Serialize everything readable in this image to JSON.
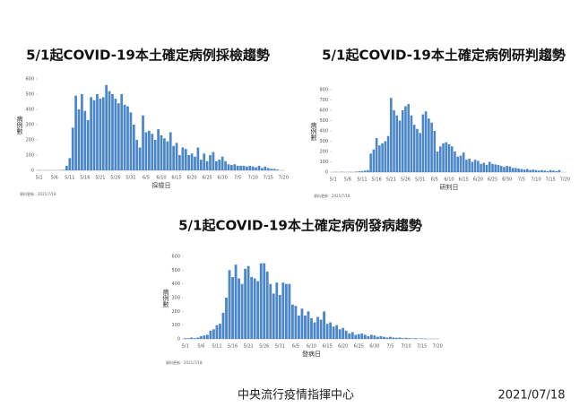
{
  "chart_data": [
    {
      "type": "bar",
      "title": "5/1起COVID-19本土確定病例採檢趨勢",
      "ylabel": "病例數",
      "xlabel": "採檢日",
      "source_note": "資料更新：2021/7/18",
      "color": "#4a86c8",
      "categories": [
        "5/1",
        null,
        null,
        null,
        null,
        "5/6",
        null,
        null,
        null,
        null,
        "5/11",
        null,
        null,
        null,
        null,
        "5/16",
        null,
        null,
        null,
        null,
        "5/21",
        null,
        null,
        null,
        null,
        "5/26",
        null,
        null,
        null,
        null,
        "5/31",
        null,
        null,
        null,
        null,
        "6/5",
        null,
        null,
        null,
        null,
        "6/10",
        null,
        null,
        null,
        null,
        "6/15",
        null,
        null,
        null,
        null,
        "6/20",
        null,
        null,
        null,
        null,
        "6/25",
        null,
        null,
        null,
        null,
        "6/30",
        null,
        null,
        null,
        null,
        "7/5",
        null,
        null,
        null,
        null,
        "7/10",
        null,
        null,
        null,
        null,
        "7/15",
        null,
        null,
        null,
        null,
        "7/20"
      ],
      "values": [
        1,
        0,
        1,
        0,
        1,
        1,
        0,
        2,
        3,
        30,
        80,
        280,
        490,
        400,
        500,
        390,
        330,
        480,
        460,
        500,
        470,
        480,
        560,
        520,
        500,
        470,
        440,
        500,
        430,
        420,
        380,
        300,
        200,
        150,
        360,
        250,
        260,
        240,
        200,
        270,
        230,
        210,
        190,
        250,
        160,
        180,
        100,
        150,
        140,
        100,
        110,
        90,
        150,
        70,
        110,
        60,
        100,
        120,
        60,
        70,
        90,
        60,
        40,
        35,
        40,
        30,
        30,
        30,
        25,
        30,
        25,
        20,
        30,
        15,
        25,
        15,
        10,
        10,
        5,
        null,
        null
      ],
      "ylim": [
        0,
        600
      ],
      "yticks": [
        0,
        100,
        200,
        300,
        400,
        500,
        600
      ]
    },
    {
      "type": "bar",
      "title": "5/1起COVID-19本土確定病例研判趨勢",
      "ylabel": "病例數",
      "xlabel": "研判日",
      "source_note": "資料更新：2021/7/18",
      "color": "#4a86c8",
      "categories": [
        "5/1",
        null,
        null,
        null,
        null,
        "5/6",
        null,
        null,
        null,
        null,
        "5/11",
        null,
        null,
        null,
        null,
        "5/16",
        null,
        null,
        null,
        null,
        "5/21",
        null,
        null,
        null,
        null,
        "5/26",
        null,
        null,
        null,
        null,
        "5/31",
        null,
        null,
        null,
        null,
        "6/5",
        null,
        null,
        null,
        null,
        "6/10",
        null,
        null,
        null,
        null,
        "6/15",
        null,
        null,
        null,
        null,
        "6/20",
        null,
        null,
        null,
        null,
        "6/25",
        null,
        null,
        null,
        null,
        "6/30",
        null,
        null,
        null,
        null,
        "7/5",
        null,
        null,
        null,
        null,
        "7/10",
        null,
        null,
        null,
        null,
        "7/15",
        null,
        null,
        null,
        null,
        "7/20"
      ],
      "values": [
        0,
        2,
        0,
        3,
        0,
        1,
        2,
        0,
        5,
        8,
        10,
        15,
        20,
        180,
        220,
        330,
        260,
        280,
        300,
        350,
        720,
        600,
        550,
        500,
        600,
        640,
        660,
        550,
        460,
        420,
        380,
        560,
        590,
        520,
        480,
        400,
        200,
        250,
        280,
        290,
        270,
        250,
        200,
        150,
        160,
        190,
        120,
        130,
        100,
        120,
        110,
        80,
        90,
        70,
        100,
        80,
        75,
        70,
        60,
        50,
        60,
        55,
        40,
        40,
        35,
        30,
        25,
        30,
        20,
        25,
        20,
        15,
        20,
        15,
        10,
        20,
        15,
        10,
        20,
        null,
        null
      ],
      "ylim": [
        0,
        800
      ],
      "yticks": [
        0,
        100,
        200,
        300,
        400,
        500,
        600,
        700,
        800
      ]
    },
    {
      "type": "bar",
      "title": "5/1起COVID-19本土確定病例發病趨勢",
      "ylabel": "病例數",
      "xlabel": "發病日",
      "source_note": "資料更新：2021/7/18",
      "color": "#4a86c8",
      "categories": [
        "5/1",
        null,
        null,
        null,
        null,
        "5/6",
        null,
        null,
        null,
        null,
        "5/11",
        null,
        null,
        null,
        null,
        "5/16",
        null,
        null,
        null,
        null,
        "5/21",
        null,
        null,
        null,
        null,
        "5/26",
        null,
        null,
        null,
        null,
        "5/31",
        null,
        null,
        null,
        null,
        "6/5",
        null,
        null,
        null,
        null,
        "6/10",
        null,
        null,
        null,
        null,
        "6/15",
        null,
        null,
        null,
        null,
        "6/20",
        null,
        null,
        null,
        null,
        "6/25",
        null,
        null,
        null,
        null,
        "6/30",
        null,
        null,
        null,
        null,
        "7/5",
        null,
        null,
        null,
        null,
        "7/10",
        null,
        null,
        null,
        null,
        "7/15",
        null,
        null,
        null,
        null,
        "7/20"
      ],
      "values": [
        5,
        5,
        10,
        5,
        10,
        20,
        25,
        30,
        60,
        70,
        100,
        110,
        190,
        300,
        500,
        450,
        540,
        440,
        400,
        510,
        530,
        450,
        440,
        420,
        550,
        550,
        490,
        400,
        330,
        410,
        320,
        410,
        400,
        400,
        250,
        240,
        170,
        220,
        170,
        200,
        150,
        120,
        160,
        140,
        200,
        110,
        120,
        90,
        100,
        70,
        80,
        60,
        40,
        50,
        30,
        35,
        40,
        30,
        20,
        30,
        25,
        15,
        20,
        15,
        10,
        15,
        10,
        8,
        10,
        5,
        8,
        5,
        3,
        5,
        2,
        3,
        2,
        0,
        1,
        null,
        null
      ],
      "ylim": [
        0,
        600
      ],
      "yticks": [
        0,
        100,
        200,
        300,
        400,
        500,
        600
      ]
    }
  ],
  "footer": {
    "organization": "中央流行疫情指揮中心",
    "date": "2021/07/18"
  }
}
